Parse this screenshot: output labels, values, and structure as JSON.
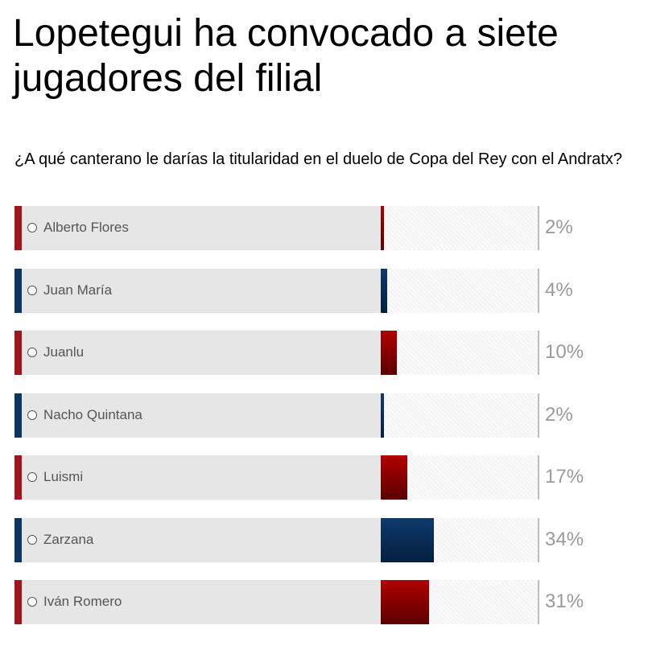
{
  "headline": "Lopetegui ha convocado a siete jugadores del filial",
  "poll": {
    "question": "¿A qué canterano le darías la titularidad en el duelo de Copa del Rey con el Andratx?",
    "colors": {
      "red": "#a0161c",
      "red_fill_top": "#b30000",
      "red_fill_bottom": "#5a0000",
      "blue": "#0c3560",
      "blue_fill_top": "#0e3a6d",
      "blue_fill_bottom": "#04203f"
    },
    "options": [
      {
        "label": "Alberto Flores",
        "percent": 2,
        "percent_label": "2%",
        "color": "red"
      },
      {
        "label": "Juan María",
        "percent": 4,
        "percent_label": "4%",
        "color": "blue"
      },
      {
        "label": "Juanlu",
        "percent": 10,
        "percent_label": "10%",
        "color": "red"
      },
      {
        "label": "Nacho Quintana",
        "percent": 2,
        "percent_label": "2%",
        "color": "blue"
      },
      {
        "label": "Luismi",
        "percent": 17,
        "percent_label": "17%",
        "color": "red"
      },
      {
        "label": "Zarzana",
        "percent": 34,
        "percent_label": "34%",
        "color": "blue"
      },
      {
        "label": "Iván Romero",
        "percent": 31,
        "percent_label": "31%",
        "color": "red"
      }
    ]
  }
}
